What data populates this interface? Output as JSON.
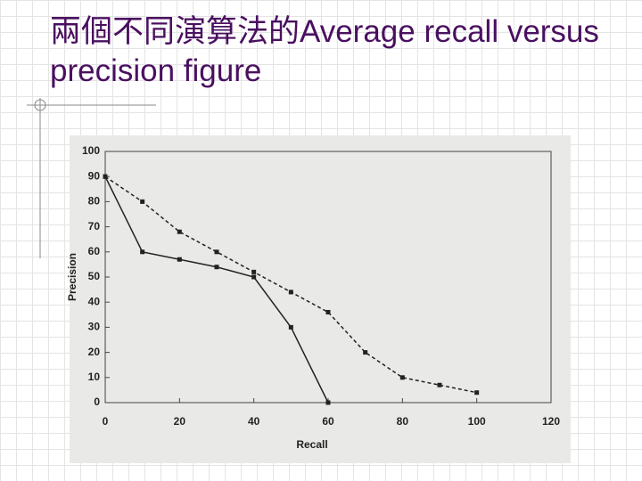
{
  "chart_data": {
    "type": "line",
    "title": "兩個不同演算法的Average recall versus precision figure",
    "xlabel": "Recall",
    "ylabel": "Precision",
    "xlim": [
      0,
      120
    ],
    "xticks": [
      0,
      20,
      40,
      60,
      80,
      100,
      120
    ],
    "ylim": [
      0,
      100
    ],
    "yticks": [
      0,
      10,
      20,
      30,
      40,
      50,
      60,
      70,
      80,
      90,
      100
    ],
    "series": [
      {
        "color": "#222222",
        "x": [
          0,
          10,
          20,
          30,
          40,
          50,
          60
        ],
        "values": [
          90,
          60,
          57,
          54,
          50,
          30,
          0
        ]
      },
      {
        "color": "#222222",
        "x": [
          0,
          10,
          20,
          30,
          40,
          50,
          60,
          70,
          80,
          90,
          100
        ],
        "values": [
          90,
          80,
          68,
          60,
          52,
          44,
          36,
          20,
          10,
          7,
          4
        ]
      }
    ]
  }
}
